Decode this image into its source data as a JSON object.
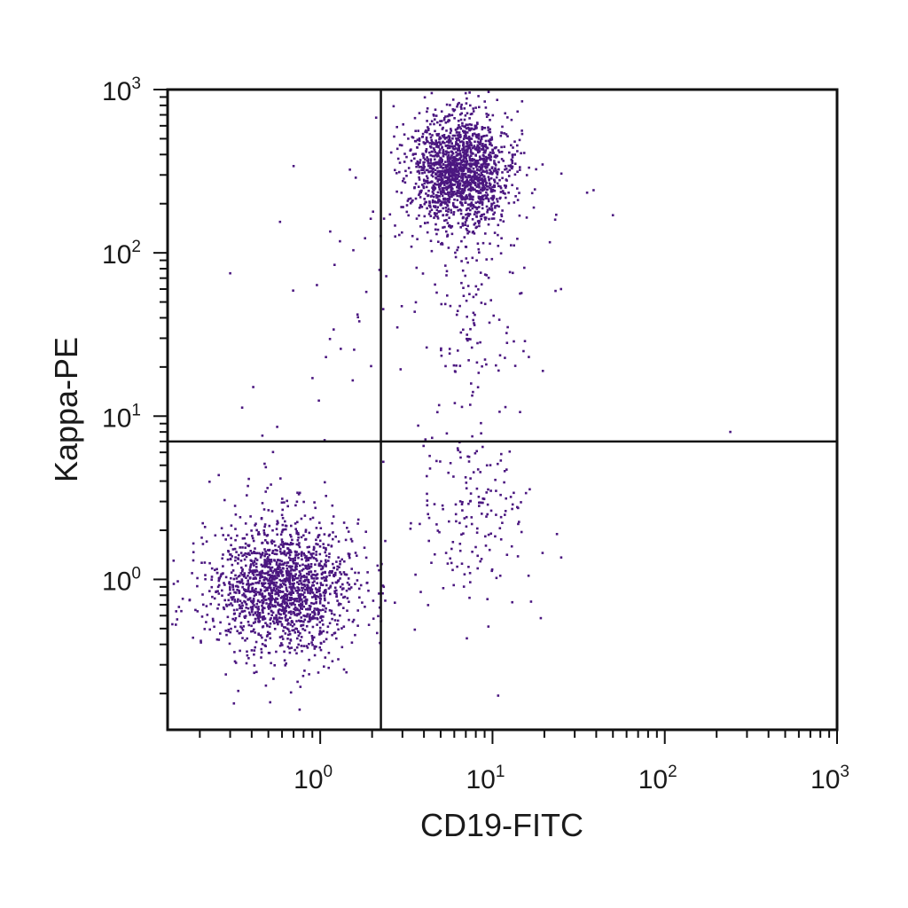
{
  "chart_data": {
    "type": "scatter",
    "title": "",
    "xlabel": "CD19-FITC",
    "ylabel": "Kappa-PE",
    "x_scale": "log",
    "y_scale": "log",
    "xlim": [
      0.13,
      1000
    ],
    "ylim": [
      0.12,
      1000
    ],
    "grid": false,
    "legend": "none",
    "point_color": "#4b1780",
    "x_ticks": [
      {
        "base": "10",
        "exp": "0",
        "value": 1
      },
      {
        "base": "10",
        "exp": "1",
        "value": 10
      },
      {
        "base": "10",
        "exp": "2",
        "value": 100
      },
      {
        "base": "10",
        "exp": "3",
        "value": 1000
      }
    ],
    "y_ticks": [
      {
        "base": "10",
        "exp": "0",
        "value": 1
      },
      {
        "base": "10",
        "exp": "1",
        "value": 10
      },
      {
        "base": "10",
        "exp": "2",
        "value": 100
      },
      {
        "base": "10",
        "exp": "3",
        "value": 1000
      }
    ],
    "quadrant_gates": {
      "x": 2.25,
      "y": 7.0
    },
    "populations": [
      {
        "center": [
          0.6,
          0.9
        ],
        "spread": [
          0.19,
          0.2
        ],
        "count": 1700
      },
      {
        "center": [
          6.5,
          320
        ],
        "spread": [
          0.13,
          0.16
        ],
        "count": 1700
      },
      {
        "center": [
          8.0,
          2.4
        ],
        "spread": [
          0.16,
          0.25
        ],
        "count": 170
      },
      {
        "center": [
          8.0,
          40
        ],
        "spread": [
          0.17,
          0.35
        ],
        "count": 130
      },
      {
        "center": [
          1.6,
          30
        ],
        "spread": [
          0.2,
          0.45
        ],
        "count": 35
      }
    ],
    "outliers": [
      [
        50,
        170
      ],
      [
        240,
        8
      ],
      [
        0.3,
        75
      ],
      [
        25,
        60
      ],
      [
        0.7,
        340
      ]
    ]
  }
}
